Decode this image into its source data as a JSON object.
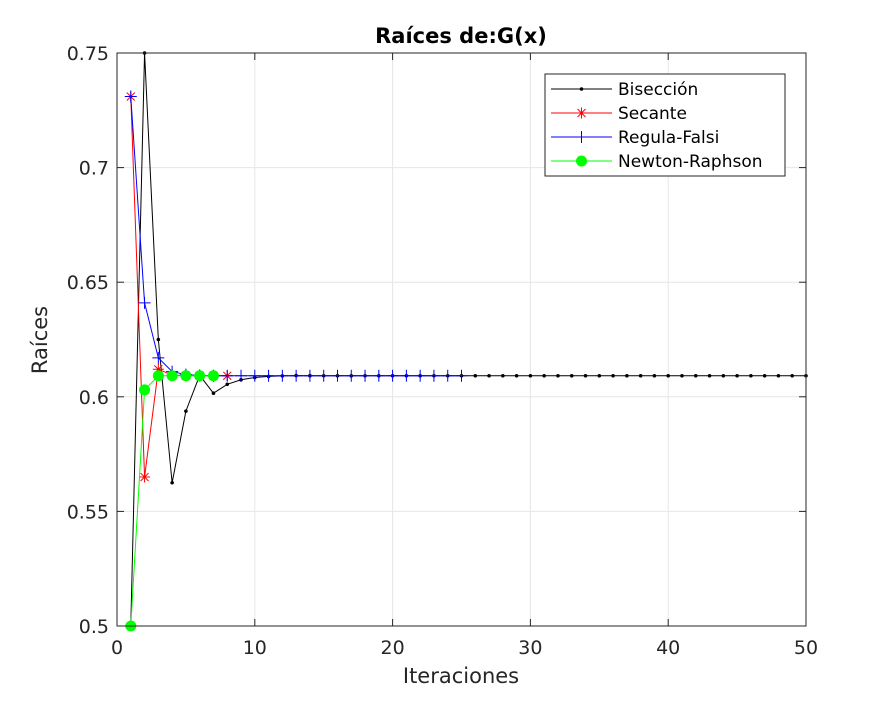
{
  "chart_data": {
    "type": "line",
    "title": "Raíces de:G(x)",
    "xlabel": "Iteraciones",
    "ylabel": "Raíces",
    "xlim": [
      0,
      50
    ],
    "ylim": [
      0.5,
      0.75
    ],
    "xticks": [
      0,
      10,
      20,
      30,
      40,
      50
    ],
    "xtick_labels": [
      "0",
      "10",
      "20",
      "30",
      "40",
      "50"
    ],
    "yticks": [
      0.5,
      0.55,
      0.6,
      0.65,
      0.7,
      0.75
    ],
    "ytick_labels": [
      "0.5",
      "0.55",
      "0.6",
      "0.65",
      "0.7",
      "0.75"
    ],
    "grid": true,
    "legend_position": "top-right",
    "series": [
      {
        "name": "Bisección",
        "color": "#000000",
        "marker": "dot",
        "x": [
          1,
          2,
          3,
          4,
          5,
          6,
          7,
          8,
          9,
          10,
          11,
          12,
          13,
          14,
          15,
          16,
          17,
          18,
          19,
          20,
          21,
          22,
          23,
          24,
          25,
          26,
          27,
          28,
          29,
          30,
          31,
          32,
          33,
          34,
          35,
          36,
          37,
          38,
          39,
          40,
          41,
          42,
          43,
          44,
          45,
          46,
          47,
          48,
          49,
          50
        ],
        "y": [
          0.5,
          0.75,
          0.625,
          0.5625,
          0.59375,
          0.609375,
          0.6015625,
          0.60546875,
          0.607422,
          0.608398,
          0.608887,
          0.609131,
          0.609253,
          0.609192,
          0.609161,
          0.609177,
          0.609169,
          0.609173,
          0.609171,
          0.609172,
          0.609172,
          0.609172,
          0.609172,
          0.609172,
          0.609172,
          0.609172,
          0.609172,
          0.609172,
          0.609172,
          0.609172,
          0.609172,
          0.609172,
          0.609172,
          0.609172,
          0.609172,
          0.609172,
          0.609172,
          0.609172,
          0.609172,
          0.609172,
          0.609172,
          0.609172,
          0.609172,
          0.609172,
          0.609172,
          0.609172,
          0.609172,
          0.609172,
          0.609172,
          0.609172
        ]
      },
      {
        "name": "Secante",
        "color": "#ff0000",
        "marker": "asterisk",
        "x": [
          1,
          2,
          3,
          4,
          5,
          6,
          7,
          8
        ],
        "y": [
          0.731,
          0.565,
          0.612,
          0.6095,
          0.6092,
          0.60917,
          0.609172,
          0.609172
        ]
      },
      {
        "name": "Regula-Falsi",
        "color": "#0000ff",
        "marker": "plus",
        "x": [
          1,
          2,
          3,
          4,
          5,
          6,
          7,
          8,
          9,
          10,
          11,
          12,
          13,
          14,
          15,
          16,
          17,
          18,
          19,
          20,
          21,
          22,
          23,
          24,
          25
        ],
        "y": [
          0.731,
          0.641,
          0.617,
          0.611,
          0.6097,
          0.6093,
          0.60921,
          0.60918,
          0.609174,
          0.609173,
          0.609172,
          0.609172,
          0.609172,
          0.609172,
          0.609172,
          0.609172,
          0.609172,
          0.609172,
          0.609172,
          0.609172,
          0.609172,
          0.609172,
          0.609172,
          0.609172,
          0.609172
        ]
      },
      {
        "name": "Newton-Raphson",
        "color": "#00ff00",
        "marker": "filled-circle",
        "x": [
          1,
          2,
          3,
          4,
          5,
          6,
          7
        ],
        "y": [
          0.5,
          0.603,
          0.6092,
          0.60917,
          0.609172,
          0.609172,
          0.609172
        ]
      }
    ]
  }
}
